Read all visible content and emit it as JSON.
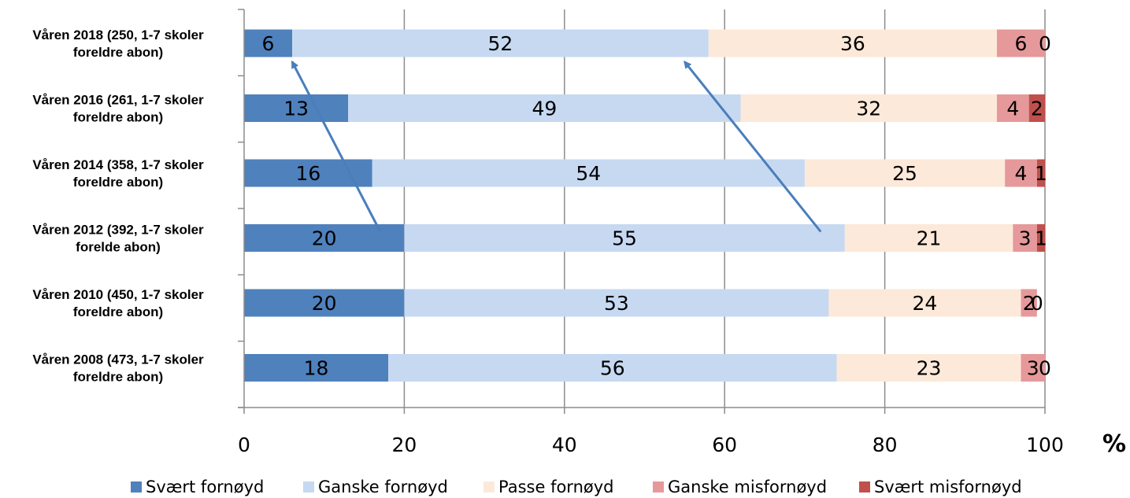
{
  "chart_data": {
    "type": "bar",
    "orientation": "horizontal",
    "stacked": true,
    "categories": [
      [
        "Våren 2018 (250, 1-7 skoler",
        "foreldre abon)"
      ],
      [
        "Våren 2016 (261, 1-7 skoler",
        "foreldre abon)"
      ],
      [
        "Våren 2014 (358, 1-7 skoler",
        "foreldre abon)"
      ],
      [
        "Våren 2012 (392, 1-7 skoler",
        "forelde abon)"
      ],
      [
        "Våren 2010 (450, 1-7 skoler",
        "foreldre abon)"
      ],
      [
        "Våren 2008 (473, 1-7 skoler",
        "foreldre abon)"
      ]
    ],
    "series": [
      {
        "name": "Svært fornøyd",
        "color": "#4f81bd",
        "values": [
          6,
          13,
          16,
          20,
          20,
          18
        ]
      },
      {
        "name": "Ganske fornøyd",
        "color": "#c6d9f1",
        "values": [
          52,
          49,
          54,
          55,
          53,
          56
        ]
      },
      {
        "name": "Passe fornøyd",
        "color": "#fde9d9",
        "values": [
          36,
          32,
          25,
          21,
          24,
          23
        ]
      },
      {
        "name": "Ganske misfornøyd",
        "color": "#e6999a",
        "values": [
          6,
          4,
          4,
          3,
          2,
          3
        ]
      },
      {
        "name": "Svært misfornøyd",
        "color": "#c0504d",
        "values": [
          0,
          2,
          1,
          1,
          0,
          0
        ]
      }
    ],
    "xlim": [
      0,
      100
    ],
    "x_ticks": [
      "0",
      "20",
      "40",
      "60",
      "80",
      "100"
    ],
    "x_unit": "%",
    "grid": true,
    "legend_position": "bottom",
    "annotations": [
      {
        "type": "arrow",
        "from": {
          "category_index": 3,
          "value": 17
        },
        "to": {
          "category_index": 0,
          "value": 6
        }
      },
      {
        "type": "arrow",
        "from": {
          "category_index": 3,
          "value": 72
        },
        "to": {
          "category_index": 0,
          "value": 55
        }
      }
    ]
  }
}
